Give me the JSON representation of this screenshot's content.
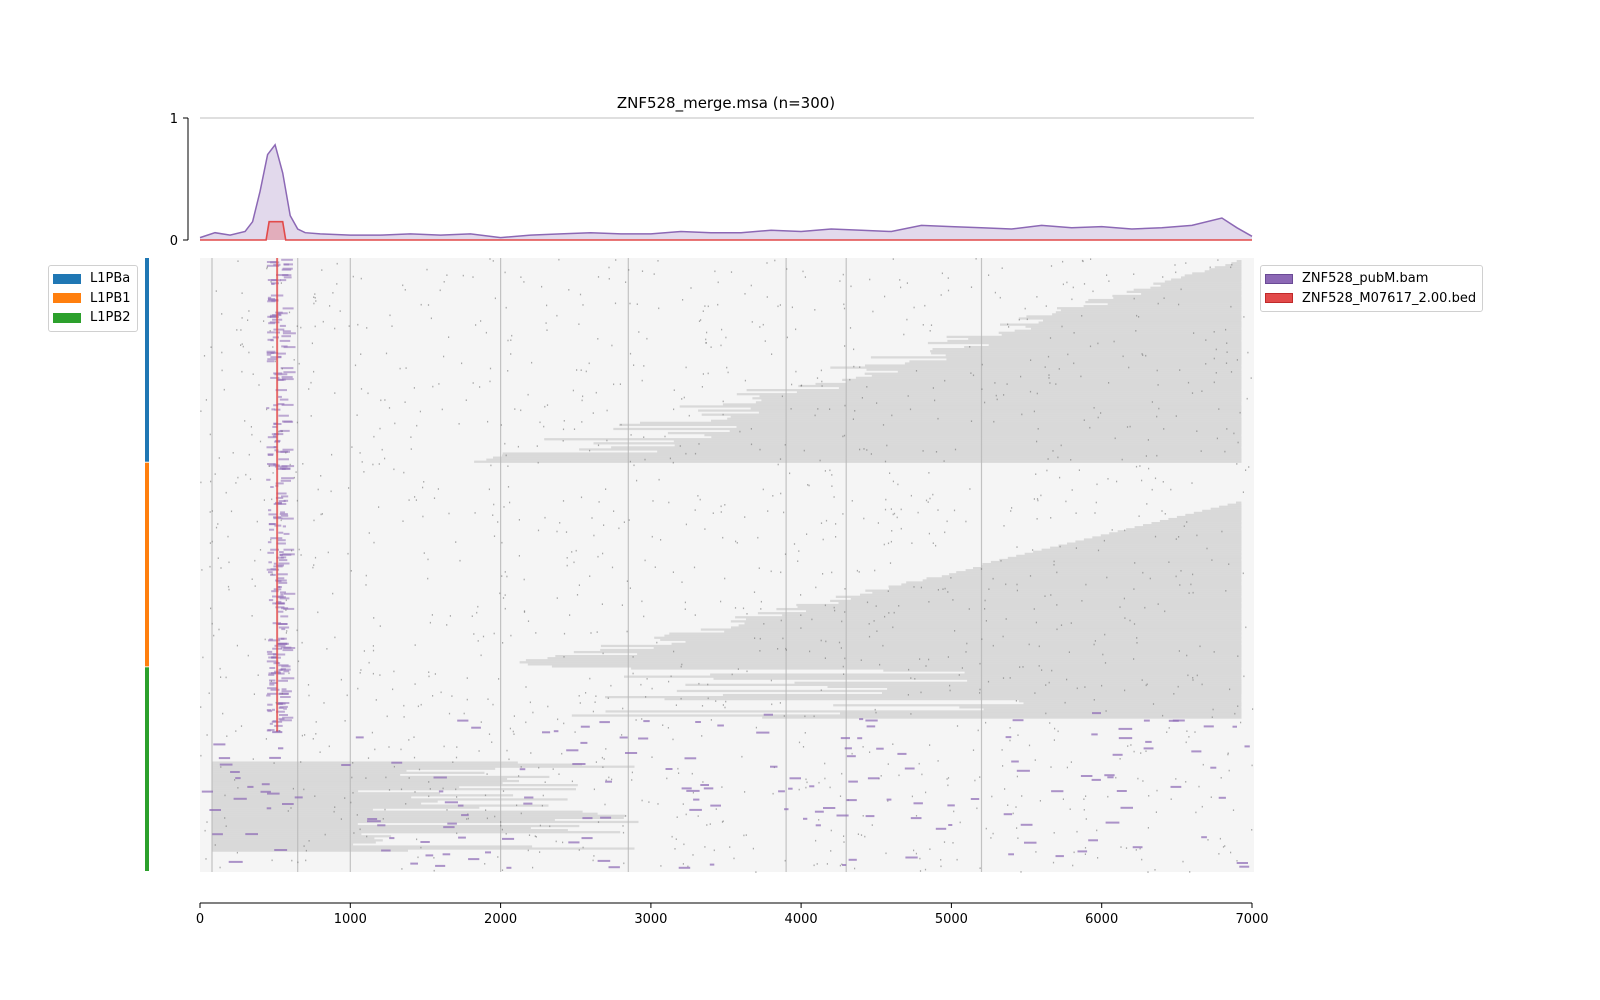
{
  "chart_data": {
    "type": "heatmap",
    "title": "ZNF528_merge.msa (n=300)",
    "profile": {
      "ylim": [
        0,
        1
      ],
      "yticks": [
        "0",
        "1"
      ],
      "xlim": [
        0,
        7000
      ],
      "series": [
        {
          "name": "ZNF528_pubM.bam",
          "color": "#8c68b5",
          "x": [
            0,
            100,
            200,
            300,
            350,
            400,
            450,
            500,
            550,
            600,
            650,
            700,
            800,
            1000,
            1200,
            1400,
            1600,
            1800,
            2000,
            2200,
            2400,
            2600,
            2800,
            3000,
            3200,
            3400,
            3600,
            3800,
            4000,
            4200,
            4400,
            4600,
            4800,
            5000,
            5200,
            5400,
            5600,
            5800,
            6000,
            6200,
            6400,
            6600,
            6800,
            6900,
            7000
          ],
          "y": [
            0.02,
            0.06,
            0.04,
            0.07,
            0.15,
            0.4,
            0.7,
            0.78,
            0.55,
            0.2,
            0.09,
            0.06,
            0.05,
            0.04,
            0.04,
            0.05,
            0.04,
            0.05,
            0.02,
            0.04,
            0.05,
            0.06,
            0.05,
            0.05,
            0.07,
            0.06,
            0.06,
            0.08,
            0.07,
            0.09,
            0.08,
            0.07,
            0.12,
            0.11,
            0.1,
            0.09,
            0.12,
            0.1,
            0.11,
            0.09,
            0.1,
            0.12,
            0.18,
            0.1,
            0.03
          ]
        },
        {
          "name": "ZNF528_M07617_2.00.bed",
          "color": "#e24a4a",
          "x": [
            0,
            440,
            460,
            550,
            570,
            7000
          ],
          "y": [
            0,
            0,
            0.15,
            0.15,
            0,
            0
          ]
        }
      ]
    },
    "heatmap": {
      "rows": 300,
      "xlim": [
        0,
        7000
      ],
      "xticks": [
        0,
        1000,
        2000,
        3000,
        4000,
        5000,
        6000,
        7000
      ],
      "row_groups": [
        {
          "name": "L1PBa",
          "color": "#1f77b4",
          "rows": [
            0,
            100
          ]
        },
        {
          "name": "L1PB1",
          "color": "#ff7f0e",
          "rows": [
            100,
            200
          ]
        },
        {
          "name": "L1PB2",
          "color": "#2ca02c",
          "rows": [
            200,
            300
          ]
        }
      ],
      "gap_color": "#d9d9d9",
      "sequence_color": "#f5f5f5",
      "peak_color": "#8c68b5",
      "motif_color": "#e24a4a",
      "motif_column": 500
    }
  },
  "legends": {
    "subfamilies": [
      {
        "label": "L1PBa",
        "color": "#1f77b4"
      },
      {
        "label": "L1PB1",
        "color": "#ff7f0e"
      },
      {
        "label": "L1PB2",
        "color": "#2ca02c"
      }
    ],
    "tracks": [
      {
        "label": "ZNF528_pubM.bam",
        "color": "#8c68b5",
        "edge": "#6a4a96"
      },
      {
        "label": "ZNF528_M07617_2.00.bed",
        "color": "#e24a4a",
        "edge": "#c02a2a"
      }
    ]
  }
}
